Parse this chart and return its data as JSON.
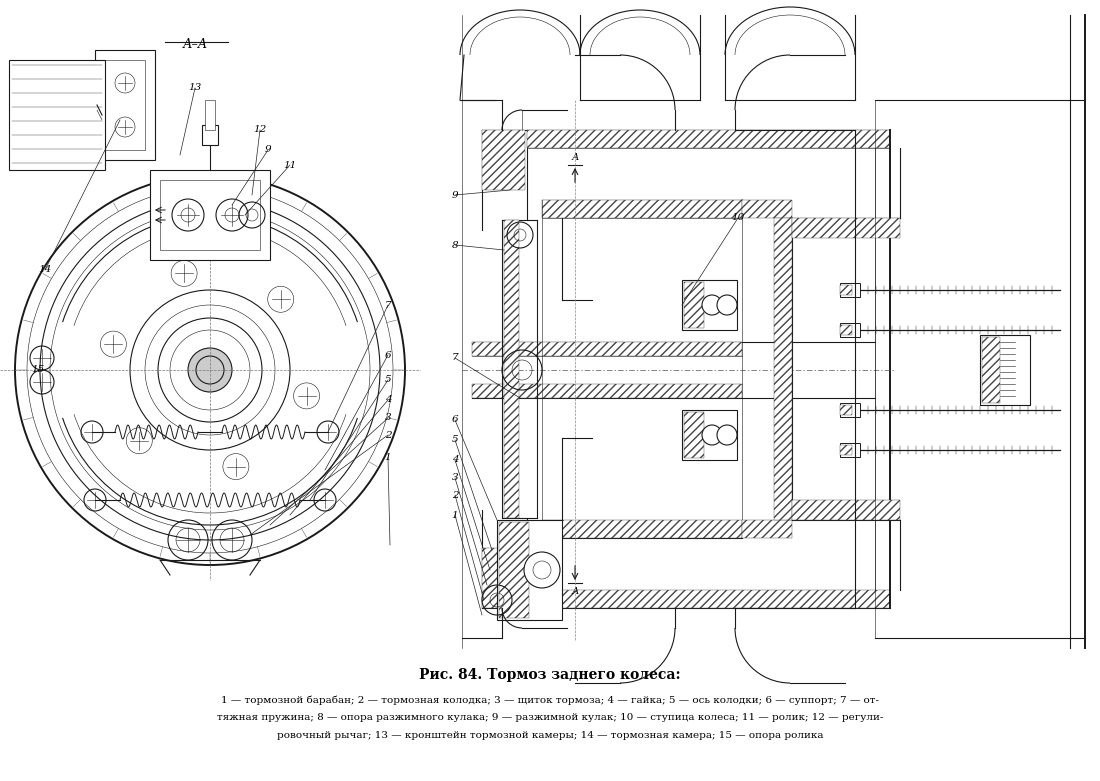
{
  "title": "Рис. 84. Тормоз заднего колеса:",
  "caption_line1": "1 — тормозной барабан; 2 — тормозная колодка; 3 — щиток тормоза; 4 — гайка; 5 — ось колодки; 6 — суппорт; 7 — от-",
  "caption_line2": "тяжная пружина; 8 — опора разжимного кулака; 9 — разжимной кулак; 10 — ступица колеса; 11 — ролик; 12 — регули-",
  "caption_line3": "ровочный рычаг; 13 — кронштейн тормозной камеры; 14 — тормозная камера; 15 — опора ролика",
  "bg_color": "#ffffff",
  "fig_width": 11.0,
  "fig_height": 7.81,
  "dpi": 100
}
